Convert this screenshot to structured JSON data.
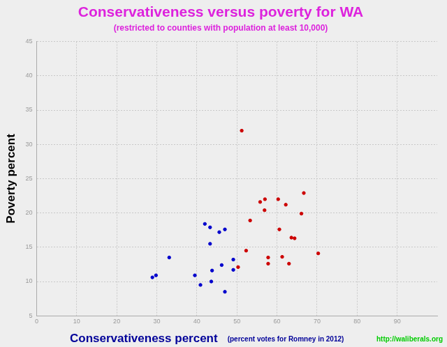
{
  "chart_data": {
    "type": "scatter",
    "title": "Conservativeness versus poverty for WA",
    "subtitle": "(restricted to counties with population at least 10,000)",
    "x_label": "Conservativeness percent",
    "x_label_note": "(percent votes for Romney in 2012)",
    "y_label": "Poverty percent",
    "source": "http://waliberals.org",
    "series": [
      {
        "color": "#0000cc",
        "marker": "circle",
        "x": [
          28.9,
          29.8,
          33.1,
          39.5,
          40.9,
          42.0,
          43.3,
          43.3,
          43.8,
          43.6,
          45.6,
          46.2,
          47.0,
          47.0,
          49.1,
          49.1
        ],
        "values": [
          10.6,
          10.9,
          13.5,
          10.9,
          9.5,
          18.4,
          17.9,
          15.5,
          11.6,
          10.0,
          17.2,
          12.4,
          17.6,
          8.5,
          13.2,
          11.7
        ]
      },
      {
        "color": "#cc0000",
        "marker": "circle",
        "x": [
          50.3,
          51.2,
          52.3,
          53.3,
          55.8,
          57.0,
          56.9,
          57.8,
          57.8,
          60.3,
          60.6,
          61.3,
          62.2,
          63.0,
          63.6,
          64.4,
          66.1,
          66.7,
          70.3
        ],
        "values": [
          12.1,
          32.0,
          14.5,
          18.9,
          21.6,
          22.0,
          20.4,
          13.5,
          12.6,
          22.0,
          17.6,
          13.6,
          21.2,
          12.6,
          16.4,
          16.3,
          19.9,
          22.9,
          14.1
        ]
      }
    ],
    "xlim": [
      0,
      100
    ],
    "xticks": [
      0,
      10,
      20,
      30,
      40,
      50,
      60,
      70,
      80,
      90
    ],
    "ylim": [
      5,
      45
    ],
    "yticks": [
      5,
      10,
      15,
      20,
      25,
      30,
      35,
      40,
      45
    ],
    "grid": true
  }
}
